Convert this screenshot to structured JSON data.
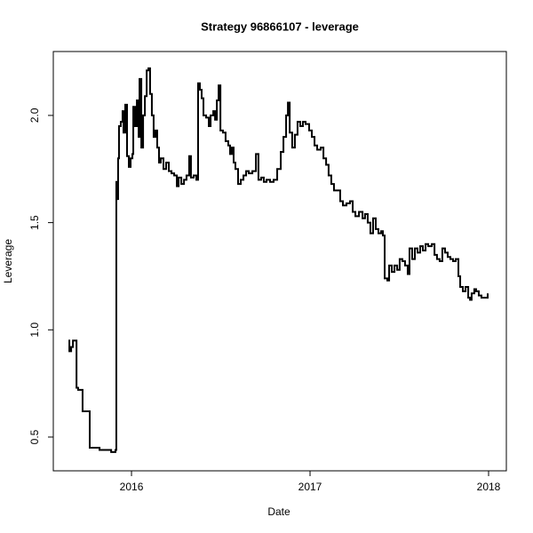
{
  "chart_data": {
    "type": "line",
    "step": true,
    "title": "Strategy 96866107 - leverage",
    "x_label": "Date",
    "y_label": "Leverage",
    "xlim": [
      2015.562,
      2018.0995
    ],
    "xticks": [
      2016,
      2017,
      2018
    ],
    "ylim": [
      0.3425,
      2.298
    ],
    "yticks": [
      0.5,
      {
        "value": 1,
        "label": "1.0"
      },
      1.5,
      {
        "value": 2,
        "label": "2.0"
      }
    ],
    "x": [
      2015.647,
      2015.652,
      2015.662,
      2015.672,
      2015.687,
      2015.692,
      2015.701,
      2015.721,
      2015.726,
      2015.761,
      2015.766,
      2015.811,
      2015.821,
      2015.861,
      2015.886,
      2015.91,
      2015.915,
      2015.92,
      2015.925,
      2015.93,
      2015.94,
      2015.95,
      2015.955,
      2015.965,
      2015.975,
      2015.985,
      2015.995,
      2016.005,
      2016.01,
      2016.02,
      2016.03,
      2016.04,
      2016.045,
      2016.055,
      2016.065,
      2016.075,
      2016.085,
      2016.095,
      2016.104,
      2016.114,
      2016.124,
      2016.134,
      2016.144,
      2016.154,
      2016.164,
      2016.179,
      2016.194,
      2016.209,
      2016.224,
      2016.239,
      2016.254,
      2016.264,
      2016.279,
      2016.294,
      2016.308,
      2016.323,
      2016.333,
      2016.348,
      2016.363,
      2016.373,
      2016.383,
      2016.393,
      2016.403,
      2016.418,
      2016.433,
      2016.443,
      2016.458,
      2016.468,
      2016.478,
      2016.488,
      2016.498,
      2016.512,
      2016.527,
      2016.542,
      2016.552,
      2016.562,
      2016.572,
      2016.582,
      2016.597,
      2016.612,
      2016.627,
      2016.642,
      2016.657,
      2016.677,
      2016.697,
      2016.711,
      2016.726,
      2016.741,
      2016.756,
      2016.776,
      2016.796,
      2016.816,
      2016.836,
      2016.851,
      2016.866,
      2016.876,
      2016.886,
      2016.9,
      2016.915,
      2016.93,
      2016.945,
      2016.96,
      2016.975,
      2016.995,
      2017.01,
      2017.025,
      2017.04,
      2017.06,
      2017.075,
      2017.09,
      2017.104,
      2017.119,
      2017.134,
      2017.149,
      2017.169,
      2017.184,
      2017.204,
      2017.224,
      2017.239,
      2017.254,
      2017.274,
      2017.294,
      2017.308,
      2017.323,
      2017.338,
      2017.353,
      2017.368,
      2017.383,
      2017.398,
      2017.408,
      2017.418,
      2017.433,
      2017.443,
      2017.458,
      2017.473,
      2017.488,
      2017.502,
      2017.517,
      2017.532,
      2017.547,
      2017.557,
      2017.572,
      2017.587,
      2017.602,
      2017.617,
      2017.632,
      2017.647,
      2017.662,
      2017.682,
      2017.697,
      2017.711,
      2017.726,
      2017.741,
      2017.756,
      2017.771,
      2017.786,
      2017.801,
      2017.816,
      2017.831,
      2017.841,
      2017.856,
      2017.871,
      2017.886,
      2017.896,
      2017.905,
      2017.92,
      2017.93,
      2017.945,
      2017.96,
      2017.98,
      2017.995
    ],
    "values": [
      0.95,
      0.9,
      0.92,
      0.95,
      0.95,
      0.73,
      0.72,
      0.72,
      0.62,
      0.62,
      0.45,
      0.45,
      0.44,
      0.44,
      0.43,
      0.44,
      1.69,
      1.61,
      1.8,
      1.95,
      1.97,
      2.02,
      1.92,
      2.05,
      1.81,
      1.76,
      1.8,
      1.82,
      2.04,
      1.95,
      2.07,
      1.9,
      2.17,
      1.85,
      2.0,
      2.09,
      2.21,
      2.22,
      2.1,
      2.0,
      1.9,
      1.93,
      1.85,
      1.78,
      1.8,
      1.75,
      1.78,
      1.74,
      1.73,
      1.72,
      1.67,
      1.71,
      1.68,
      1.7,
      1.72,
      1.81,
      1.71,
      1.72,
      1.7,
      2.15,
      2.12,
      2.08,
      2.0,
      1.99,
      1.95,
      2.0,
      2.02,
      1.98,
      2.07,
      2.14,
      1.93,
      1.92,
      1.88,
      1.86,
      1.82,
      1.85,
      1.78,
      1.75,
      1.68,
      1.7,
      1.72,
      1.74,
      1.73,
      1.74,
      1.82,
      1.7,
      1.71,
      1.69,
      1.7,
      1.69,
      1.7,
      1.75,
      1.83,
      1.9,
      2.0,
      2.06,
      1.92,
      1.85,
      1.91,
      1.97,
      1.95,
      1.97,
      1.96,
      1.93,
      1.9,
      1.86,
      1.84,
      1.85,
      1.8,
      1.77,
      1.72,
      1.68,
      1.65,
      1.65,
      1.6,
      1.58,
      1.59,
      1.6,
      1.55,
      1.53,
      1.55,
      1.52,
      1.54,
      1.5,
      1.45,
      1.52,
      1.47,
      1.45,
      1.46,
      1.44,
      1.24,
      1.23,
      1.3,
      1.27,
      1.3,
      1.28,
      1.33,
      1.32,
      1.3,
      1.26,
      1.38,
      1.33,
      1.38,
      1.36,
      1.39,
      1.37,
      1.4,
      1.39,
      1.4,
      1.35,
      1.33,
      1.32,
      1.38,
      1.36,
      1.34,
      1.33,
      1.32,
      1.33,
      1.25,
      1.2,
      1.18,
      1.2,
      1.15,
      1.14,
      1.17,
      1.19,
      1.18,
      1.16,
      1.15,
      1.15,
      1.17
    ],
    "color": "#000000"
  }
}
